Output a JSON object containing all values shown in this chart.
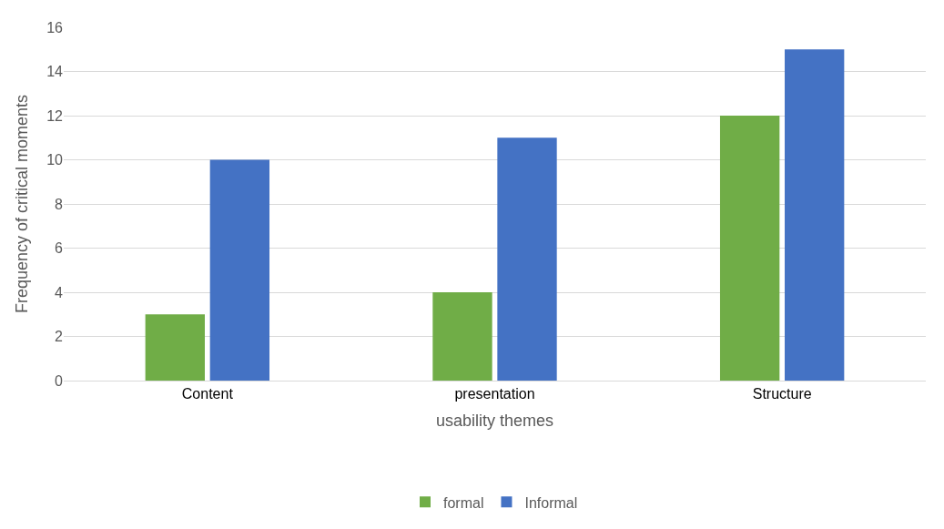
{
  "chart_data": {
    "type": "bar",
    "xlabel": "usability themes",
    "ylabel": "Frequency of critical moments",
    "categories": [
      "Content",
      "presentation",
      "Structure"
    ],
    "series": [
      {
        "name": "formal",
        "color": "#70ad47",
        "values": [
          3,
          4,
          12
        ]
      },
      {
        "name": "Informal",
        "color": "#4472c4",
        "values": [
          10,
          11,
          15
        ]
      }
    ],
    "ylim": [
      0,
      16
    ],
    "yticks": [
      0,
      2,
      4,
      6,
      8,
      10,
      12,
      14,
      16
    ],
    "grid": "y",
    "legend": "bottom"
  }
}
